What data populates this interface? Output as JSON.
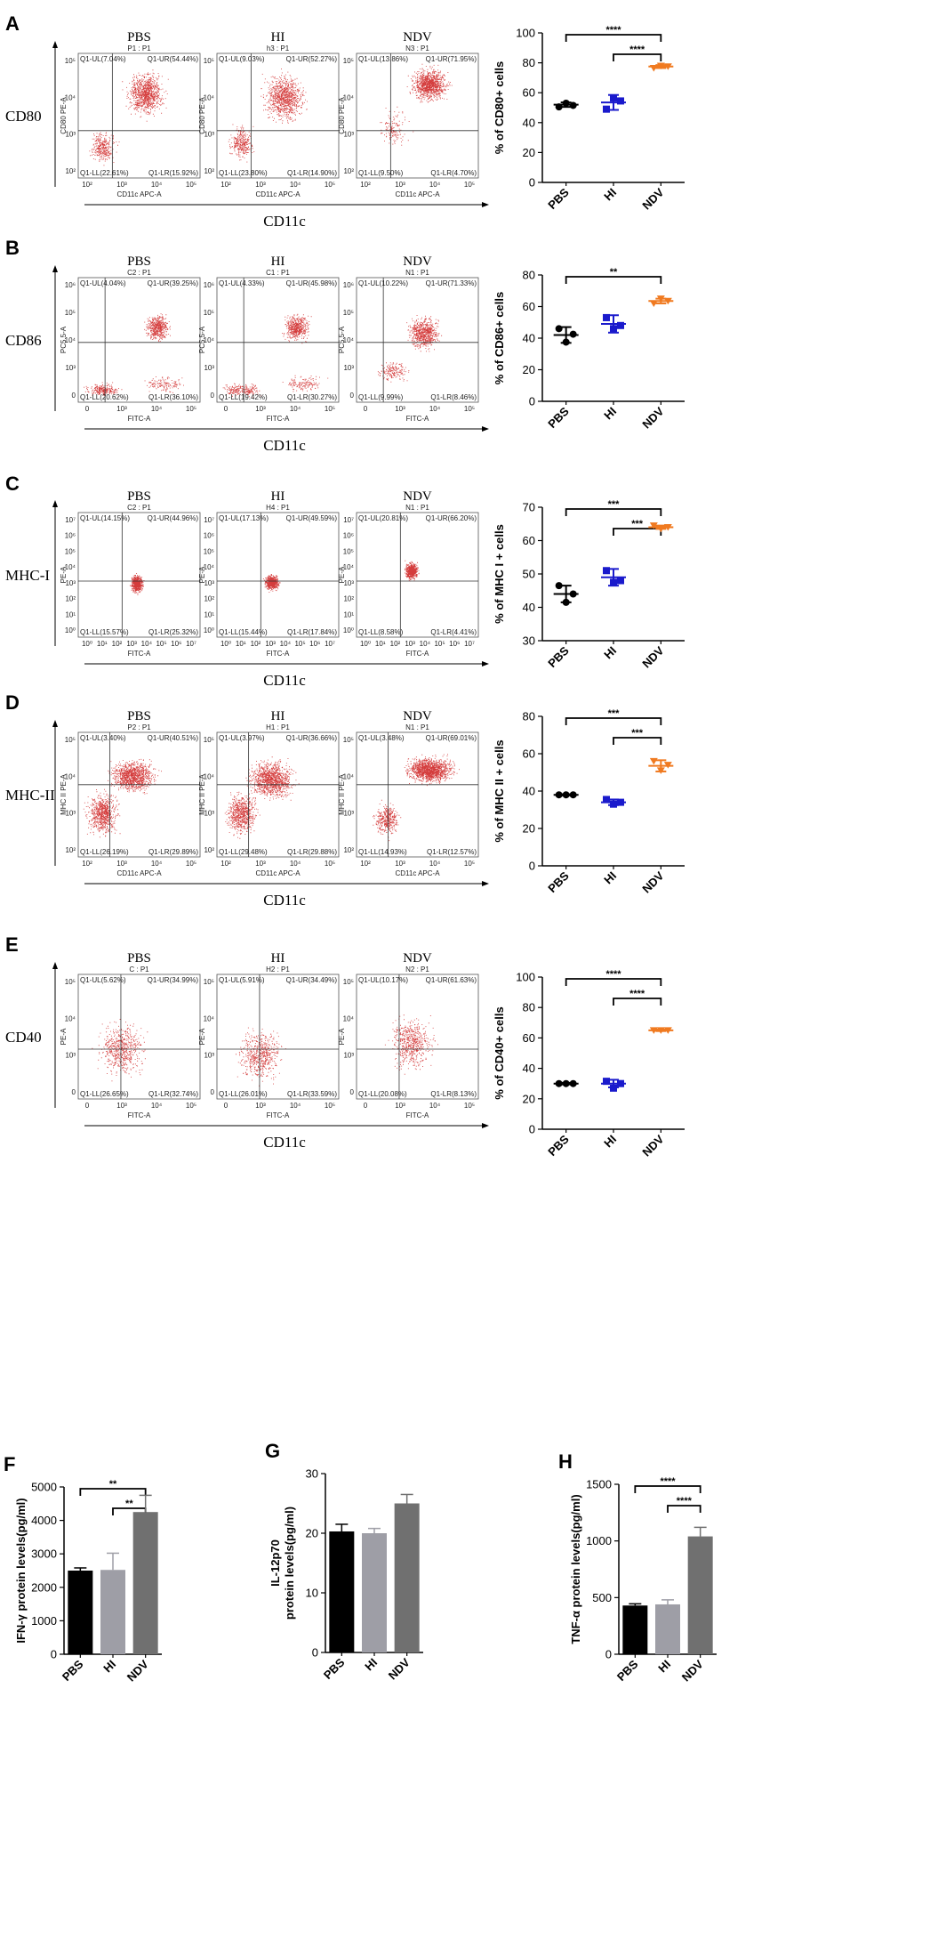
{
  "figure": {
    "panels": [
      {
        "letter": "A",
        "marker": "CD80",
        "axis": "CD11c",
        "ylab": "CD80 PE-A",
        "xlab": "CD11c APC-A",
        "yticks": [
          "10²",
          "10³",
          "10⁴",
          "10⁵"
        ],
        "xticks": [
          "10²",
          "10³",
          "10⁴",
          "10⁵"
        ],
        "plots": [
          {
            "group": "PBS",
            "sub": "P1 : P1",
            "ul": "Q1-UL(7.04%)",
            "ur": "Q1-UR(54.44%)",
            "ll": "Q1-LL(22.61%)",
            "lr": "Q1-LR(15.92%)"
          },
          {
            "group": "HI",
            "sub": "h3 : P1",
            "ul": "Q1-UL(9.03%)",
            "ur": "Q1-UR(52.27%)",
            "ll": "Q1-LL(23.80%)",
            "lr": "Q1-LR(14.90%)"
          },
          {
            "group": "NDV",
            "sub": "N3 : P1",
            "ul": "Q1-UL(13.86%)",
            "ur": "Q1-UR(71.95%)",
            "ll": "Q1-LL(9.50%)",
            "lr": "Q1-LR(4.70%)"
          }
        ]
      },
      {
        "letter": "B",
        "marker": "CD86",
        "axis": "CD11c",
        "ylab": "PC5.5-A",
        "xlab": "FITC-A",
        "yticks": [
          "0",
          "10³",
          "10⁴",
          "10⁵",
          "10⁶"
        ],
        "xticks": [
          "0",
          "10³",
          "10⁴",
          "10⁵"
        ],
        "plots": [
          {
            "group": "PBS",
            "sub": "C2 : P1",
            "ul": "Q1-UL(4.04%)",
            "ur": "Q1-UR(39.25%)",
            "ll": "Q1-LL(20.62%)",
            "lr": "Q1-LR(36.10%)"
          },
          {
            "group": "HI",
            "sub": "C1 : P1",
            "ul": "Q1-UL(4.33%)",
            "ur": "Q1-UR(45.98%)",
            "ll": "Q1-LL(19.42%)",
            "lr": "Q1-LR(30.27%)"
          },
          {
            "group": "NDV",
            "sub": "N1 : P1",
            "ul": "Q1-UL(10.22%)",
            "ur": "Q1-UR(71.33%)",
            "ll": "Q1-LL(9.99%)",
            "lr": "Q1-LR(8.46%)"
          }
        ]
      },
      {
        "letter": "C",
        "marker": "MHC-I",
        "axis": "CD11c",
        "ylab": "PE-A",
        "xlab": "FITC-A",
        "yticks": [
          "10⁰",
          "10¹",
          "10²",
          "10³",
          "10⁴",
          "10⁵",
          "10⁶",
          "10⁷"
        ],
        "xticks": [
          "10⁰",
          "10¹",
          "10²",
          "10³",
          "10⁴",
          "10⁵",
          "10⁶",
          "10⁷"
        ],
        "plots": [
          {
            "group": "PBS",
            "sub": "C2 : P1",
            "ul": "Q1-UL(14.15%)",
            "ur": "Q1-UR(44.96%)",
            "ll": "Q1-LL(15.57%)",
            "lr": "Q1-LR(25.32%)"
          },
          {
            "group": "HI",
            "sub": "H4 : P1",
            "ul": "Q1-UL(17.13%)",
            "ur": "Q1-UR(49.59%)",
            "ll": "Q1-LL(15.44%)",
            "lr": "Q1-LR(17.84%)"
          },
          {
            "group": "NDV",
            "sub": "N1 : P1",
            "ul": "Q1-UL(20.81%)",
            "ur": "Q1-UR(66.20%)",
            "ll": "Q1-LL(8.58%)",
            "lr": "Q1-LR(4.41%)"
          }
        ]
      },
      {
        "letter": "D",
        "marker": "MHC-II",
        "axis": "CD11c",
        "ylab": "MHC II PE-A",
        "xlab": "CD11c APC-A",
        "yticks": [
          "10²",
          "10³",
          "10⁴",
          "10⁵"
        ],
        "xticks": [
          "10²",
          "10³",
          "10⁴",
          "10⁵"
        ],
        "plots": [
          {
            "group": "PBS",
            "sub": "P2 : P1",
            "ul": "Q1-UL(3.40%)",
            "ur": "Q1-UR(40.51%)",
            "ll": "Q1-LL(26.19%)",
            "lr": "Q1-LR(29.89%)"
          },
          {
            "group": "HI",
            "sub": "H1 : P1",
            "ul": "Q1-UL(3.97%)",
            "ur": "Q1-UR(36.66%)",
            "ll": "Q1-LL(29.48%)",
            "lr": "Q1-LR(29.88%)"
          },
          {
            "group": "NDV",
            "sub": "N1 : P1",
            "ul": "Q1-UL(3.48%)",
            "ur": "Q1-UR(69.01%)",
            "ll": "Q1-LL(14.93%)",
            "lr": "Q1-LR(12.57%)"
          }
        ]
      },
      {
        "letter": "E",
        "marker": "CD40",
        "axis": "CD11c",
        "ylab": "PE-A",
        "xlab": "FITC-A",
        "yticks": [
          "0",
          "10³",
          "10⁴",
          "10⁵"
        ],
        "xticks": [
          "0",
          "10³",
          "10⁴",
          "10⁵"
        ],
        "plots": [
          {
            "group": "PBS",
            "sub": "C : P1",
            "ul": "Q1-UL(5.62%)",
            "ur": "Q1-UR(34.99%)",
            "ll": "Q1-LL(26.65%)",
            "lr": "Q1-LR(32.74%)"
          },
          {
            "group": "HI",
            "sub": "H2 : P1",
            "ul": "Q1-UL(5.91%)",
            "ur": "Q1-UR(34.49%)",
            "ll": "Q1-LL(26.01%)",
            "lr": "Q1-LR(33.59%)"
          },
          {
            "group": "NDV",
            "sub": "N2 : P1",
            "ul": "Q1-UL(10.17%)",
            "ur": "Q1-UR(61.63%)",
            "ll": "Q1-LL(20.08%)",
            "lr": "Q1-LR(8.13%)"
          }
        ]
      }
    ],
    "bar_letters": [
      "F",
      "G",
      "H"
    ]
  },
  "colors": {
    "pbs": "#000000",
    "hi": "#1a1acc",
    "ndv": "#f07a20",
    "dots": "#cc1a1a",
    "bar_pbs": "#000000",
    "bar_hi": "#9e9ea6",
    "bar_ndv": "#707070"
  },
  "chart_data": [
    {
      "id": "A",
      "type": "scatter",
      "ylabel": "% of CD80+ cells",
      "categories": [
        "PBS",
        "HI",
        "NDV"
      ],
      "ylim": [
        0,
        100
      ],
      "yticks": [
        0,
        20,
        40,
        60,
        80,
        100
      ],
      "points": [
        [
          50.5,
          53,
          51.5
        ],
        [
          49,
          56.5,
          54.5
        ],
        [
          76.5,
          78,
          77.5
        ]
      ],
      "mean": [
        52,
        53.5,
        77.5
      ],
      "sd": [
        1.5,
        5,
        1
      ],
      "sig": [
        {
          "from": 0,
          "to": 2,
          "label": "****"
        },
        {
          "from": 1,
          "to": 2,
          "label": "****"
        }
      ]
    },
    {
      "id": "B",
      "type": "scatter",
      "ylabel": "% of CD86+ cells",
      "categories": [
        "PBS",
        "HI",
        "NDV"
      ],
      "ylim": [
        0,
        80
      ],
      "yticks": [
        0,
        20,
        40,
        60,
        80
      ],
      "points": [
        [
          46,
          37.5,
          42.5
        ],
        [
          53,
          46,
          48
        ],
        [
          62,
          65,
          63.5
        ]
      ],
      "mean": [
        42,
        49,
        63.5
      ],
      "sd": [
        5,
        5.5,
        1.5
      ],
      "sig": [
        {
          "from": 0,
          "to": 2,
          "label": "**"
        }
      ]
    },
    {
      "id": "C",
      "type": "scatter",
      "ylabel": "% of MHC I + cells",
      "categories": [
        "PBS",
        "HI",
        "NDV"
      ],
      "ylim": [
        30,
        70
      ],
      "yticks": [
        30,
        40,
        50,
        60,
        70
      ],
      "points": [
        [
          46.5,
          41.5,
          44
        ],
        [
          51,
          47.5,
          48
        ],
        [
          64.5,
          63.5,
          64
        ]
      ],
      "mean": [
        44,
        49,
        64
      ],
      "sd": [
        2.5,
        2.5,
        0.5
      ],
      "sig": [
        {
          "from": 0,
          "to": 2,
          "label": "***"
        },
        {
          "from": 1,
          "to": 2,
          "label": "***"
        }
      ]
    },
    {
      "id": "D",
      "type": "scatter",
      "ylabel": "% of MHC II + cells",
      "categories": [
        "PBS",
        "HI",
        "NDV"
      ],
      "ylim": [
        0,
        80
      ],
      "yticks": [
        0,
        20,
        40,
        60,
        80
      ],
      "points": [
        [
          38,
          38,
          38
        ],
        [
          35.5,
          33,
          34
        ],
        [
          56,
          51,
          54
        ]
      ],
      "mean": [
        38,
        34,
        53.5
      ],
      "sd": [
        0.3,
        1.5,
        3
      ],
      "sig": [
        {
          "from": 0,
          "to": 2,
          "label": "***"
        },
        {
          "from": 1,
          "to": 2,
          "label": "***"
        }
      ]
    },
    {
      "id": "E",
      "type": "scatter",
      "ylabel": "% of CD40+ cells",
      "categories": [
        "PBS",
        "HI",
        "NDV"
      ],
      "ylim": [
        0,
        100
      ],
      "yticks": [
        0,
        20,
        40,
        60,
        80,
        100
      ],
      "points": [
        [
          30,
          30,
          30
        ],
        [
          31.5,
          27,
          30
        ],
        [
          65,
          65,
          65
        ]
      ],
      "mean": [
        30,
        30,
        65
      ],
      "sd": [
        0.5,
        2.5,
        0.5
      ],
      "sig": [
        {
          "from": 0,
          "to": 2,
          "label": "****"
        },
        {
          "from": 1,
          "to": 2,
          "label": "****"
        }
      ]
    },
    {
      "id": "F",
      "type": "bar",
      "ylabel": "IFN-γ protein levels(pg/ml)",
      "categories": [
        "PBS",
        "HI",
        "NDV"
      ],
      "ylim": [
        0,
        5000
      ],
      "yticks": [
        0,
        1000,
        2000,
        3000,
        4000,
        5000
      ],
      "values": [
        2500,
        2520,
        4250
      ],
      "err": [
        80,
        500,
        500
      ],
      "sig": [
        {
          "from": 0,
          "to": 2,
          "label": "**"
        },
        {
          "from": 1,
          "to": 2,
          "label": "**"
        }
      ]
    },
    {
      "id": "G",
      "type": "bar",
      "ylabel": "IL-12p70\nprotein levels(pg/ml)",
      "categories": [
        "PBS",
        "HI",
        "NDV"
      ],
      "ylim": [
        0,
        30
      ],
      "yticks": [
        0,
        10,
        20,
        30
      ],
      "values": [
        20.3,
        20,
        25
      ],
      "err": [
        1.2,
        0.8,
        1.5
      ],
      "sig": []
    },
    {
      "id": "H",
      "type": "bar",
      "ylabel": "TNF-α protein levels(pg/ml)",
      "categories": [
        "PBS",
        "HI",
        "NDV"
      ],
      "ylim": [
        0,
        1500
      ],
      "yticks": [
        0,
        500,
        1000,
        1500
      ],
      "values": [
        430,
        440,
        1040
      ],
      "err": [
        15,
        40,
        80
      ],
      "sig": [
        {
          "from": 0,
          "to": 2,
          "label": "****"
        },
        {
          "from": 1,
          "to": 2,
          "label": "****"
        }
      ]
    }
  ]
}
